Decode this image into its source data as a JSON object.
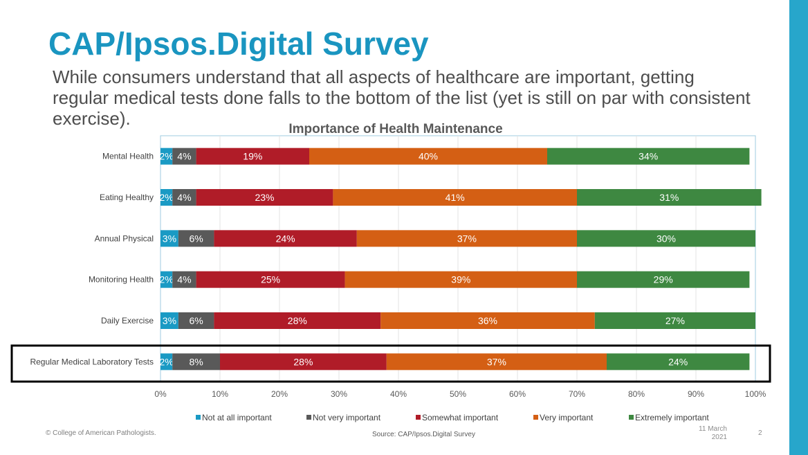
{
  "slide": {
    "title": "CAP/Ipsos.Digital Survey",
    "subtitle": "While consumers understand that all aspects of healthcare are important, getting regular medical tests done falls to the bottom of the list (yet is still on par with consistent exercise).",
    "copyright": "© College of American Pathologists.",
    "source": "Source: CAP/Ipsos.Digital Survey",
    "date_line1": "11 March",
    "date_line2": "2021",
    "page_number": "2",
    "accent_color": "#1a95c0",
    "highlighted_category": "Regular Medical Laboratory Tests"
  },
  "chart_data": {
    "type": "bar",
    "orientation": "horizontal",
    "stacked": "percent",
    "title": "Importance of Health Maintenance",
    "xlabel": "",
    "ylabel": "",
    "xlim": [
      0,
      100
    ],
    "x_ticks": [
      "0%",
      "10%",
      "20%",
      "30%",
      "40%",
      "50%",
      "60%",
      "70%",
      "80%",
      "90%",
      "100%"
    ],
    "grid": true,
    "legend_position": "bottom",
    "categories": [
      "Mental Health",
      "Eating Healthy",
      "Annual Physical",
      "Monitoring Health",
      "Daily Exercise",
      "Regular Medical Laboratory Tests"
    ],
    "series": [
      {
        "name": "Not at all important",
        "color": "#1a9ac4",
        "values": [
          2,
          2,
          3,
          2,
          3,
          2
        ]
      },
      {
        "name": "Not very important",
        "color": "#595959",
        "values": [
          4,
          4,
          6,
          4,
          6,
          8
        ]
      },
      {
        "name": "Somewhat important",
        "color": "#b01c28",
        "values": [
          19,
          23,
          24,
          25,
          28,
          28
        ]
      },
      {
        "name": "Very important",
        "color": "#d45f14",
        "values": [
          40,
          41,
          37,
          39,
          36,
          37
        ]
      },
      {
        "name": "Extremely important",
        "color": "#3e8841",
        "values": [
          34,
          31,
          30,
          29,
          27,
          24
        ]
      }
    ]
  }
}
